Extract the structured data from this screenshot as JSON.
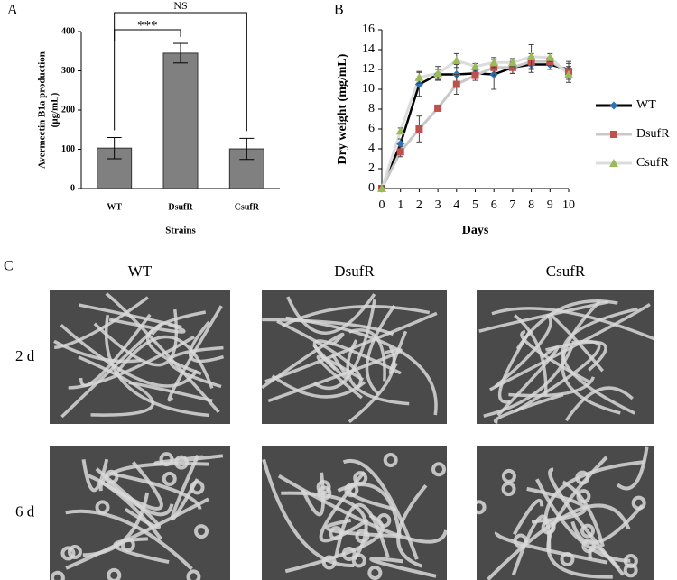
{
  "chart_data": [
    {
      "type": "bar",
      "panel": "A",
      "ylabel": [
        "Avermectin B1a production",
        "(μg/mL)"
      ],
      "xlabel": "Strains",
      "categories": [
        "WT",
        "DsufR",
        "CsufR"
      ],
      "values": [
        103,
        345,
        101
      ],
      "errors": [
        27,
        25,
        27
      ],
      "color": "#808080",
      "ylim": [
        0,
        400
      ],
      "yticks": [
        0,
        100,
        200,
        300,
        400
      ],
      "annotations": [
        "***",
        "NS"
      ]
    },
    {
      "type": "line",
      "panel": "B",
      "ylabel": "Dry weight (mg/mL)",
      "xlabel": "Days",
      "x": [
        0,
        1,
        2,
        3,
        4,
        5,
        6,
        7,
        8,
        9,
        10
      ],
      "xlim": [
        0,
        10
      ],
      "xticks": [
        0,
        1,
        2,
        3,
        4,
        5,
        6,
        7,
        8,
        9,
        10
      ],
      "ylim": [
        0,
        16
      ],
      "yticks": [
        0,
        2,
        4,
        6,
        8,
        10,
        12,
        14,
        16
      ],
      "legend": "right",
      "series": [
        {
          "name": "WT",
          "color": "#000000",
          "marker_color": "#2e74b5",
          "marker": "diamond",
          "values": [
            0,
            4.5,
            10.5,
            11.5,
            11.5,
            11.6,
            11.5,
            12.2,
            12.5,
            12.5,
            12.0
          ],
          "errors": [
            0.3,
            0.5,
            1.2,
            0.5,
            1.0,
            0.4,
            1.5,
            0.6,
            0.8,
            0.5,
            0.8
          ]
        },
        {
          "name": "DsufR",
          "color": "#c8c8c8",
          "marker_color": "#c0504d",
          "marker": "square",
          "values": [
            0,
            3.7,
            6.0,
            8.1,
            10.5,
            11.4,
            12.2,
            12.2,
            12.8,
            12.8,
            11.8
          ],
          "errors": [
            0.2,
            0.5,
            1.3,
            0.3,
            1.0,
            0.5,
            0.8,
            0.6,
            0.8,
            0.4,
            0.8
          ]
        },
        {
          "name": "CsufR",
          "color": "#dcdcdc",
          "marker_color": "#9bbb59",
          "marker": "triangle",
          "values": [
            0,
            5.8,
            11.2,
            11.6,
            12.9,
            12.3,
            12.7,
            12.7,
            13.3,
            13.2,
            11.5
          ],
          "errors": [
            0.2,
            0.3,
            0.6,
            0.7,
            0.7,
            0.3,
            0.5,
            0.4,
            1.2,
            0.4,
            0.8
          ]
        }
      ]
    }
  ],
  "panel_c": {
    "label": "C",
    "columns": [
      "WT",
      "DsufR",
      "CsufR"
    ],
    "rows": [
      "2 d",
      "6 d"
    ]
  }
}
